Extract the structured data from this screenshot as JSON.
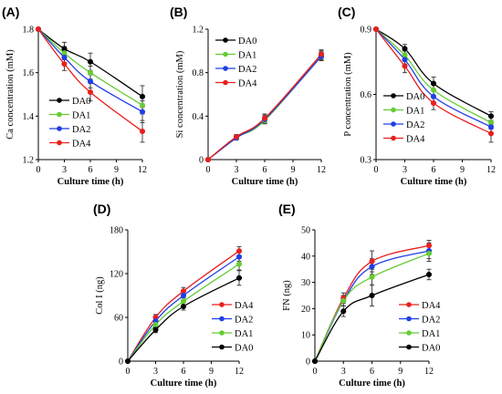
{
  "chart_data": [
    {
      "panel": "(A)",
      "type": "line",
      "xlabel": "Culture time (h)",
      "ylabel": "Ca concentration (mM)",
      "xlim": [
        0,
        12
      ],
      "ylim": [
        1.2,
        1.8
      ],
      "xticks": [
        0,
        3,
        6,
        9,
        12
      ],
      "yticks": [
        1.2,
        1.4,
        1.6,
        1.8
      ],
      "ytick_labels": [
        "1.2",
        "1.4",
        "1.6",
        "1.8"
      ],
      "legend_position": "left-middle",
      "x": [
        0,
        3,
        6,
        12
      ],
      "series": [
        {
          "name": "DA0",
          "color": "#000000",
          "values": [
            1.8,
            1.71,
            1.65,
            1.49
          ],
          "err": [
            0,
            0.03,
            0.04,
            0.05
          ]
        },
        {
          "name": "DA1",
          "color": "#66cc33",
          "values": [
            1.8,
            1.69,
            1.6,
            1.45
          ],
          "err": [
            0,
            0.03,
            0.03,
            0.04
          ]
        },
        {
          "name": "DA2",
          "color": "#1f3fe6",
          "values": [
            1.8,
            1.67,
            1.56,
            1.42
          ],
          "err": [
            0,
            0.03,
            0.03,
            0.05
          ]
        },
        {
          "name": "DA4",
          "color": "#e8201e",
          "values": [
            1.8,
            1.64,
            1.51,
            1.33
          ],
          "err": [
            0,
            0.03,
            0.04,
            0.05
          ]
        }
      ]
    },
    {
      "panel": "(B)",
      "type": "line",
      "xlabel": "Culture time (h)",
      "ylabel": "Si concentration (mM)",
      "xlim": [
        0,
        12
      ],
      "ylim": [
        0,
        1.2
      ],
      "xticks": [
        0,
        3,
        6,
        9,
        12
      ],
      "yticks": [
        0,
        0.4,
        0.8,
        1.2
      ],
      "ytick_labels": [
        "0",
        "0.4",
        "0.8",
        "1.2"
      ],
      "legend_position": "top-left",
      "x": [
        0,
        3,
        6,
        12
      ],
      "series": [
        {
          "name": "DA0",
          "color": "#000000",
          "values": [
            0,
            0.21,
            0.37,
            0.95
          ],
          "err": [
            0,
            0.02,
            0.04,
            0.04
          ]
        },
        {
          "name": "DA1",
          "color": "#66cc33",
          "values": [
            0,
            0.2,
            0.36,
            0.96
          ],
          "err": [
            0,
            0.02,
            0.03,
            0.04
          ]
        },
        {
          "name": "DA2",
          "color": "#1f3fe6",
          "values": [
            0,
            0.2,
            0.37,
            0.95
          ],
          "err": [
            0,
            0.02,
            0.03,
            0.04
          ]
        },
        {
          "name": "DA4",
          "color": "#e8201e",
          "values": [
            0,
            0.21,
            0.38,
            0.97
          ],
          "err": [
            0,
            0.02,
            0.04,
            0.04
          ]
        }
      ]
    },
    {
      "panel": "(C)",
      "type": "line",
      "xlabel": "Culture time (h)",
      "ylabel": "P concentration (mM)",
      "xlim": [
        0,
        12
      ],
      "ylim": [
        0.3,
        0.9
      ],
      "xticks": [
        0,
        3,
        6,
        9,
        12
      ],
      "yticks": [
        0.3,
        0.6,
        0.9
      ],
      "ytick_labels": [
        "0.3",
        "0.6",
        "0.9"
      ],
      "legend_position": "left-middle",
      "x": [
        0,
        3,
        6,
        12
      ],
      "series": [
        {
          "name": "DA0",
          "color": "#000000",
          "values": [
            0.9,
            0.81,
            0.65,
            0.5
          ],
          "err": [
            0,
            0.02,
            0.03,
            0.02
          ]
        },
        {
          "name": "DA1",
          "color": "#66cc33",
          "values": [
            0.9,
            0.78,
            0.62,
            0.47
          ],
          "err": [
            0,
            0.02,
            0.03,
            0.03
          ]
        },
        {
          "name": "DA2",
          "color": "#1f3fe6",
          "values": [
            0.9,
            0.76,
            0.59,
            0.45
          ],
          "err": [
            0,
            0.02,
            0.03,
            0.03
          ]
        },
        {
          "name": "DA4",
          "color": "#e8201e",
          "values": [
            0.9,
            0.73,
            0.56,
            0.42
          ],
          "err": [
            0,
            0.03,
            0.03,
            0.04
          ]
        }
      ]
    },
    {
      "panel": "(D)",
      "type": "line",
      "xlabel": "Culture time (h)",
      "ylabel": "Col I (ng)",
      "xlim": [
        0,
        12
      ],
      "ylim": [
        0,
        180
      ],
      "xticks": [
        0,
        3,
        6,
        9,
        12
      ],
      "yticks": [
        0,
        60,
        120,
        180
      ],
      "ytick_labels": [
        "0",
        "60",
        "120",
        "180"
      ],
      "legend_position": "right-middle",
      "x": [
        0,
        3,
        6,
        12
      ],
      "series": [
        {
          "name": "DA4",
          "color": "#e8201e",
          "values": [
            0,
            60,
            96,
            151
          ],
          "err": [
            0,
            4,
            5,
            6
          ]
        },
        {
          "name": "DA2",
          "color": "#1f3fe6",
          "values": [
            0,
            55,
            90,
            143
          ],
          "err": [
            0,
            4,
            5,
            6
          ]
        },
        {
          "name": "DA1",
          "color": "#66cc33",
          "values": [
            0,
            50,
            82,
            133
          ],
          "err": [
            0,
            4,
            5,
            8
          ]
        },
        {
          "name": "DA0",
          "color": "#000000",
          "values": [
            0,
            43,
            75,
            114
          ],
          "err": [
            0,
            4,
            5,
            10
          ]
        }
      ]
    },
    {
      "panel": "(E)",
      "type": "line",
      "xlabel": "Culture time (h)",
      "ylabel": "FN (ng)",
      "xlim": [
        0,
        12
      ],
      "ylim": [
        0,
        50
      ],
      "xticks": [
        0,
        3,
        6,
        9,
        12
      ],
      "yticks": [
        0,
        10,
        20,
        30,
        40,
        50
      ],
      "ytick_labels": [
        "0",
        "10",
        "20",
        "30",
        "40",
        "50"
      ],
      "legend_position": "right-middle",
      "x": [
        0,
        3,
        6,
        12
      ],
      "series": [
        {
          "name": "DA4",
          "color": "#e8201e",
          "values": [
            0,
            24,
            38,
            44
          ],
          "err": [
            0,
            2,
            4,
            2
          ]
        },
        {
          "name": "DA2",
          "color": "#1f3fe6",
          "values": [
            0,
            23,
            36,
            42
          ],
          "err": [
            0,
            2,
            3,
            3
          ]
        },
        {
          "name": "DA1",
          "color": "#66cc33",
          "values": [
            0,
            23,
            32,
            41
          ],
          "err": [
            0,
            2,
            3,
            3
          ]
        },
        {
          "name": "DA0",
          "color": "#000000",
          "values": [
            0,
            19,
            25,
            33
          ],
          "err": [
            0,
            2,
            4,
            2
          ]
        }
      ]
    }
  ]
}
